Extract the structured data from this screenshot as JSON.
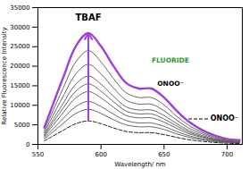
{
  "chart_data": {
    "type": "line",
    "x_label": "Wavelength/ nm",
    "y_label": "Relative Fluorescence Intensity",
    "x": [
      555,
      560,
      570,
      580,
      590,
      600,
      610,
      620,
      630,
      640,
      650,
      660,
      670,
      680,
      690,
      700,
      710
    ],
    "series": [
      {
        "name": "ONOO⁻",
        "color": "#000000",
        "line_style": "dashed",
        "values": [
          900,
          1800,
          3600,
          5300,
          6000,
          5300,
          4200,
          3300,
          3000,
          3000,
          2500,
          1800,
          1200,
          800,
          500,
          300,
          200
        ]
      },
      {
        "color": "#555555",
        "line_style": "solid",
        "values": [
          1400,
          2700,
          5400,
          7900,
          9000,
          7900,
          6300,
          5000,
          4500,
          4500,
          3800,
          2700,
          1800,
          1200,
          700,
          500,
          400
        ]
      },
      {
        "color": "#555555",
        "line_style": "solid",
        "values": [
          1700,
          3300,
          6600,
          9700,
          11000,
          9700,
          7700,
          6100,
          5500,
          5500,
          4600,
          3300,
          2200,
          1400,
          900,
          600,
          400
        ]
      },
      {
        "color": "#555555",
        "line_style": "solid",
        "values": [
          2000,
          4100,
          8100,
          11900,
          13500,
          11900,
          9500,
          7400,
          6800,
          6800,
          5700,
          4100,
          2700,
          1800,
          1100,
          700,
          500
        ]
      },
      {
        "color": "#555555",
        "line_style": "solid",
        "values": [
          2300,
          4700,
          9300,
          13600,
          15500,
          13600,
          10900,
          8500,
          7800,
          7800,
          6500,
          4700,
          3100,
          2000,
          1200,
          800,
          600
        ]
      },
      {
        "color": "#555555",
        "line_style": "solid",
        "values": [
          2600,
          5300,
          10500,
          15400,
          17500,
          15400,
          12300,
          9600,
          8800,
          8800,
          7400,
          5300,
          3500,
          2300,
          1400,
          900,
          700
        ]
      },
      {
        "color": "#555555",
        "line_style": "solid",
        "values": [
          3100,
          6200,
          12300,
          18000,
          20500,
          18000,
          14400,
          11300,
          10300,
          10300,
          8600,
          6200,
          4100,
          2700,
          1600,
          1000,
          800
        ]
      },
      {
        "color": "#555555",
        "line_style": "solid",
        "values": [
          3600,
          7200,
          14400,
          21100,
          24000,
          21100,
          16800,
          13200,
          12000,
          12000,
          10100,
          7200,
          4800,
          3100,
          1900,
          1200,
          1000
        ]
      },
      {
        "name": "TBAF",
        "color": "#a040d8",
        "line_style": "solid",
        "values": [
          4300,
          8600,
          17100,
          25100,
          28500,
          25100,
          20000,
          15700,
          14300,
          14300,
          12000,
          8600,
          5700,
          3700,
          2300,
          1400,
          1100
        ]
      }
    ],
    "annotations": [
      {
        "text": "TBAF",
        "x": 590,
        "y": 32500,
        "color": "#000000"
      },
      {
        "text": "FLUORIDE",
        "x": 655,
        "y": 21500,
        "color": "#2e9a2e"
      },
      {
        "text": "ONOO⁻",
        "x": 655,
        "y": 15500,
        "color": "#000000"
      }
    ],
    "legend": "lower right",
    "xlim": [
      550,
      712
    ],
    "xticks": [
      550,
      600,
      650,
      700
    ],
    "ylim": [
      0,
      35000
    ],
    "yticks": [
      0,
      5000,
      10000,
      15000,
      20000,
      25000,
      30000,
      35000
    ],
    "grid": false
  }
}
